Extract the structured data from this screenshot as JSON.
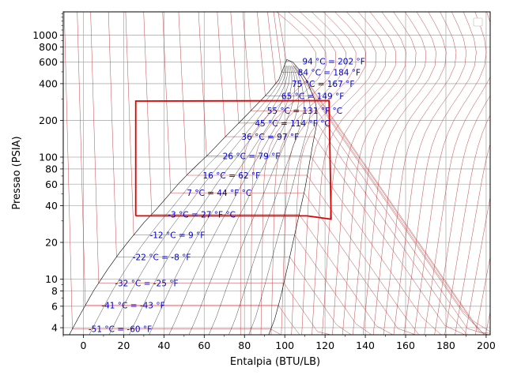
{
  "chart_data": {
    "type": "line",
    "title": "",
    "xlabel": "Entalpia (BTU/LB)",
    "ylabel": "Pressao (PSIA)",
    "xlim": [
      -10,
      202
    ],
    "ylim": [
      3.5,
      1550
    ],
    "yscale": "log",
    "grid": true,
    "x_ticks": [
      0,
      20,
      40,
      60,
      80,
      100,
      120,
      140,
      160,
      180,
      200
    ],
    "x_tick_labels": [
      "0",
      "20",
      "40",
      "60",
      "80",
      "100",
      "120",
      "140",
      "160",
      "180",
      "200"
    ],
    "y_ticks": [
      4,
      6,
      8,
      10,
      20,
      40,
      60,
      80,
      100,
      200,
      400,
      600,
      800,
      1000
    ],
    "y_tick_labels": [
      "4",
      "6",
      "8",
      "10",
      "20",
      "40",
      "60",
      "80",
      "100",
      "200",
      "400",
      "600",
      "800",
      "1000"
    ],
    "saturation_dome": {
      "liquid": {
        "x": [
          -7,
          -2,
          5,
          12,
          18,
          23,
          30,
          36,
          41,
          47,
          52,
          57,
          62,
          67,
          71,
          75,
          80,
          86,
          92,
          97,
          101
        ],
        "y": [
          3.5,
          5,
          8,
          12,
          16.5,
          21,
          29,
          37,
          46,
          60,
          73,
          88,
          105,
          128,
          150,
          175,
          212,
          268,
          340,
          430,
          630
        ]
      },
      "vapor": {
        "x": [
          101,
          104,
          108,
          111,
          113,
          115,
          116,
          116,
          114,
          112,
          110,
          106,
          102,
          98,
          95,
          92
        ],
        "y": [
          630,
          600,
          500,
          420,
          350,
          290,
          240,
          190,
          130,
          85,
          55,
          28,
          14,
          7.2,
          4.7,
          3.5
        ]
      }
    },
    "isotherms": [
      {
        "label": "94 °C = 202 °F",
        "p": 612
      },
      {
        "label": "84 °C = 184 °F",
        "p": 495
      },
      {
        "label": "75 °C = 167 °F",
        "p": 400
      },
      {
        "label": "65 °C = 149 °F",
        "p": 318
      },
      {
        "label": "55 °C = 131 °F °C",
        "p": 240
      },
      {
        "label": "45 °C = 114 °F °C",
        "p": 190
      },
      {
        "label": "36 °C = 97 °F",
        "p": 147
      },
      {
        "label": "26 °C = 79 °F",
        "p": 102
      },
      {
        "label": "16 °C = 62 °F",
        "p": 71
      },
      {
        "label": "7 °C = 44 °F °C",
        "p": 51
      },
      {
        "label": "-3 °C = 27 °F °C",
        "p": 34
      },
      {
        "label": "-12 °C = 9 °F",
        "p": 23
      },
      {
        "label": "-22 °C = -8 °F",
        "p": 15.2
      },
      {
        "label": "-32 °C = -25 °F",
        "p": 9.3
      },
      {
        "label": "-41 °C = -43 °F",
        "p": 6.1
      },
      {
        "label": "-51 °C = -60 °F",
        "p": 3.9
      }
    ],
    "cycle": {
      "name": "",
      "x": [
        26,
        26,
        122,
        123,
        111,
        26
      ],
      "y": [
        33,
        288,
        290,
        31,
        33,
        33
      ]
    }
  }
}
